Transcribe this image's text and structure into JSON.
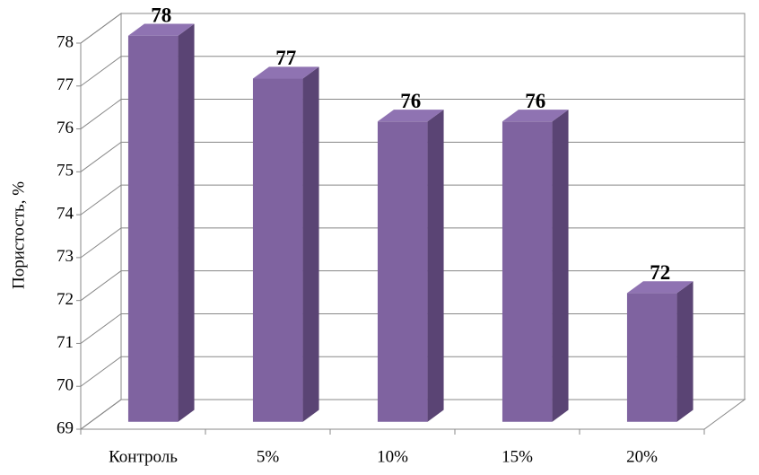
{
  "chart_data": {
    "type": "bar3d",
    "y_label": "Пористость, %",
    "categories": [
      "Контроль",
      "5%",
      "10%",
      "15%",
      "20%"
    ],
    "values": [
      78,
      77,
      76,
      76,
      72
    ],
    "color": "#7f63a0",
    "ylim": [
      69,
      78
    ],
    "yticks": [
      69,
      70,
      71,
      72,
      73,
      74,
      75,
      76,
      77,
      78
    ],
    "grid": true
  }
}
